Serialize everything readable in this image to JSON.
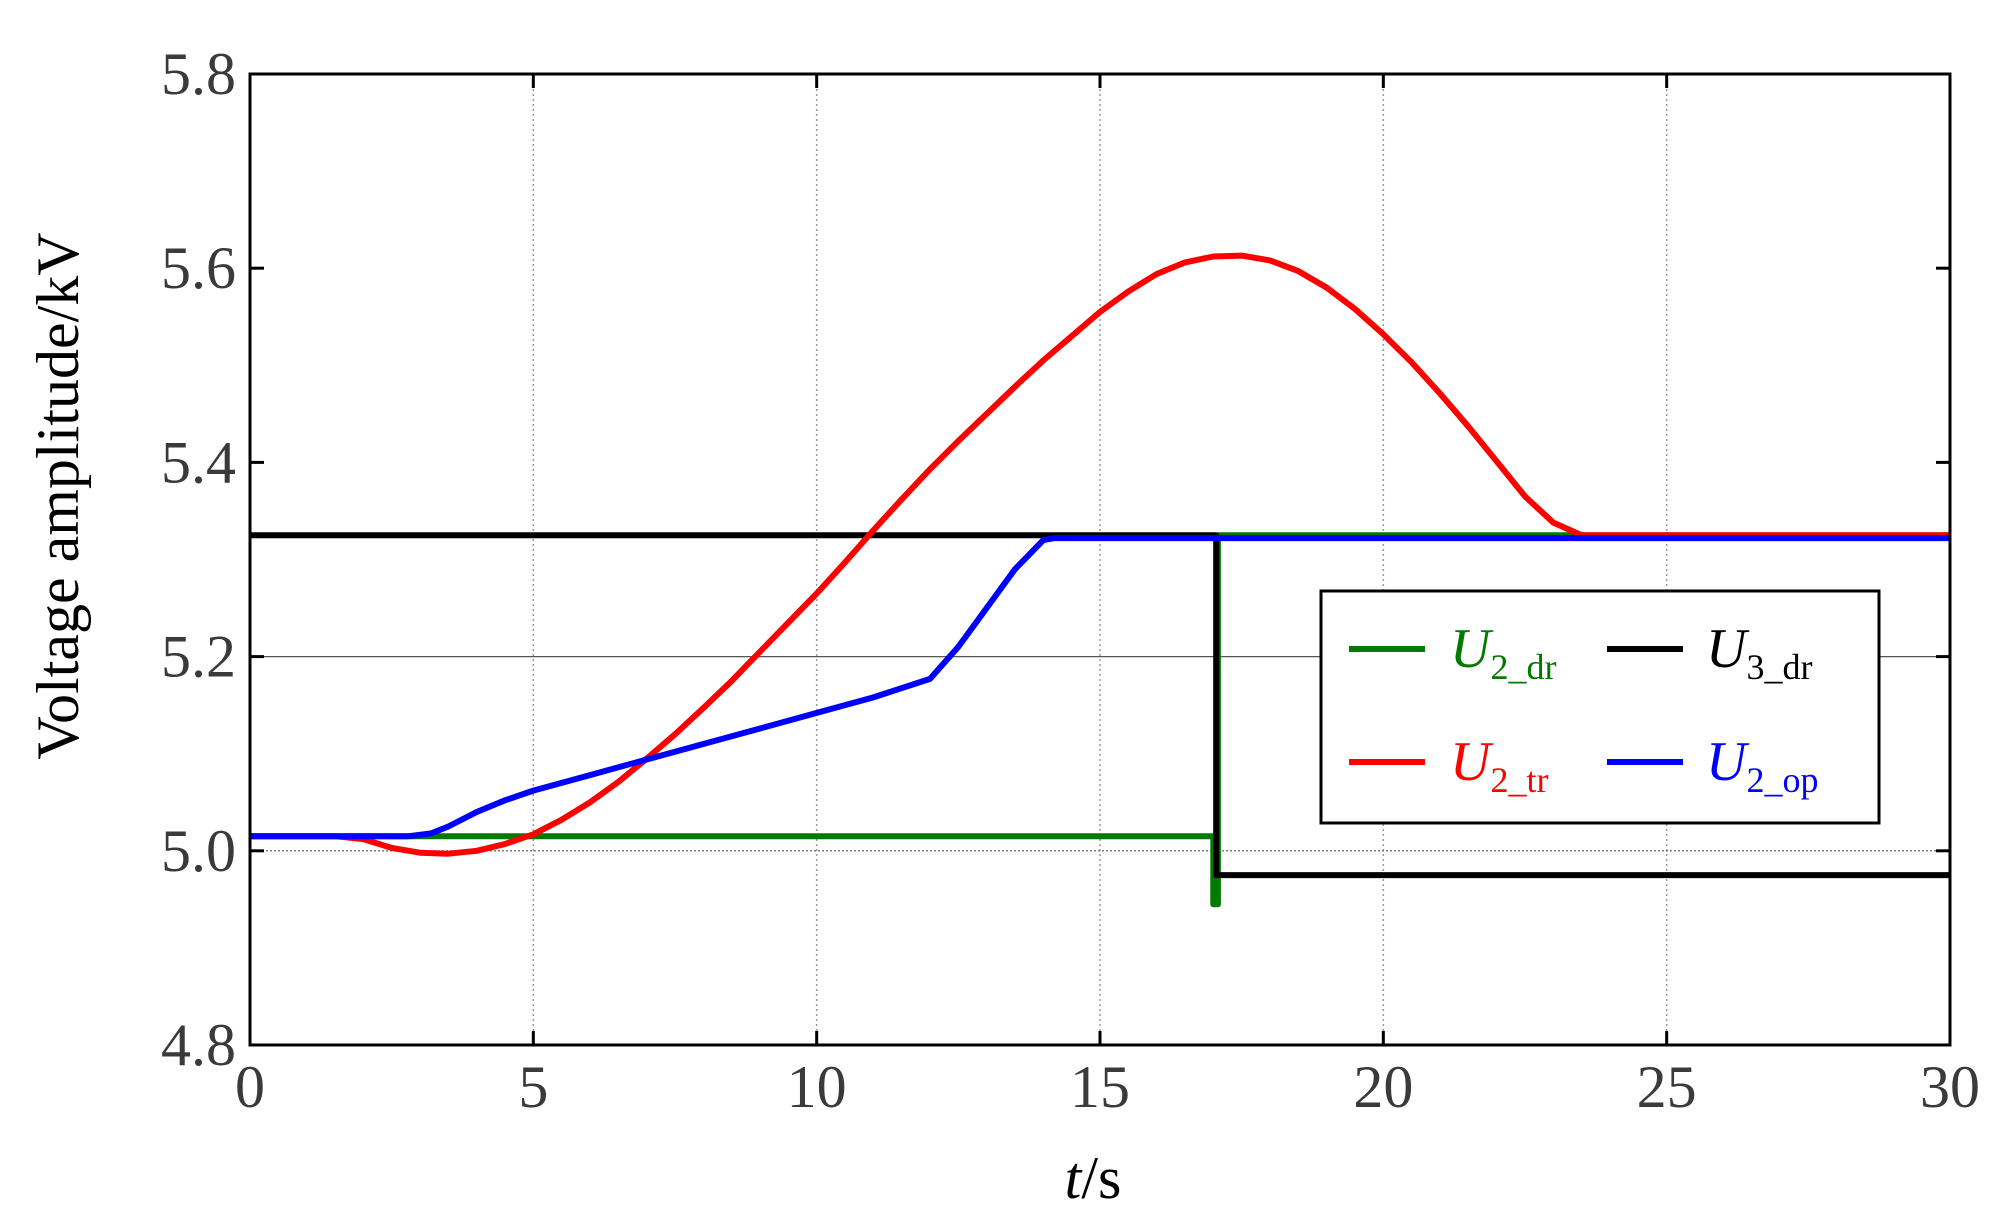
{
  "chart_data": {
    "type": "line",
    "title": "",
    "xlabel": {
      "var": "t",
      "unit": "/s"
    },
    "ylabel": "Voltage amplitude/kV",
    "xlim": [
      0,
      30
    ],
    "ylim": [
      4.8,
      5.8
    ],
    "xticks": [
      0,
      5,
      10,
      15,
      20,
      25,
      30
    ],
    "xtick_labels": [
      "0",
      "5",
      "10",
      "15",
      "20",
      "25",
      "30"
    ],
    "yticks": [
      4.8,
      5.0,
      5.2,
      5.4,
      5.6,
      5.8
    ],
    "ytick_labels": [
      "4.8",
      "5.0",
      "5.2",
      "5.4",
      "5.6",
      "5.8"
    ],
    "grid": "dotted vertical lines at x ticks; thin horizontal reference lines at 5.0 and 5.2",
    "legend_position": "right",
    "series": [
      {
        "key": "u2_dr",
        "label": {
          "main": "U",
          "sub": "2_dr"
        },
        "color": "#007a00",
        "x": [
          0,
          17,
          17,
          17.08,
          17.08,
          30
        ],
        "y": [
          5.015,
          5.015,
          4.945,
          4.945,
          5.325,
          5.325
        ]
      },
      {
        "key": "u3_dr",
        "label": {
          "main": "U",
          "sub": "3_dr"
        },
        "color": "#000000",
        "x": [
          0,
          17,
          17.05,
          17.05,
          30
        ],
        "y": [
          5.325,
          5.325,
          5.325,
          4.975,
          4.975
        ]
      },
      {
        "key": "u2_tr",
        "label": {
          "main": "U",
          "sub": "2_tr"
        },
        "color": "#ff0000",
        "x": [
          0,
          1.5,
          2,
          2.5,
          3,
          3.5,
          4,
          4.5,
          5,
          5.5,
          6,
          6.5,
          7,
          7.5,
          8,
          8.5,
          9,
          9.5,
          10,
          10.5,
          11,
          11.5,
          12,
          12.5,
          13,
          13.5,
          14,
          14.5,
          15,
          15.5,
          16,
          16.5,
          17,
          17.5,
          18,
          18.5,
          19,
          19.5,
          20,
          20.5,
          21,
          21.5,
          22,
          22.5,
          23,
          23.5,
          24,
          30
        ],
        "y": [
          5.015,
          5.015,
          5.012,
          5.003,
          4.998,
          4.997,
          5.0,
          5.007,
          5.017,
          5.032,
          5.05,
          5.071,
          5.095,
          5.12,
          5.147,
          5.175,
          5.205,
          5.235,
          5.265,
          5.297,
          5.33,
          5.362,
          5.393,
          5.422,
          5.45,
          5.478,
          5.505,
          5.53,
          5.555,
          5.576,
          5.594,
          5.606,
          5.612,
          5.613,
          5.608,
          5.597,
          5.58,
          5.558,
          5.532,
          5.503,
          5.471,
          5.437,
          5.401,
          5.365,
          5.338,
          5.325,
          5.325,
          5.325
        ]
      },
      {
        "key": "u2_op",
        "label": {
          "main": "U",
          "sub": "2_op"
        },
        "color": "#0000ff",
        "x": [
          0,
          2.8,
          3.2,
          3.5,
          4,
          4.5,
          5,
          6,
          7,
          8,
          9,
          10,
          11,
          12,
          12.5,
          13,
          13.5,
          14,
          14.2,
          30
        ],
        "y": [
          5.015,
          5.015,
          5.018,
          5.025,
          5.04,
          5.052,
          5.062,
          5.078,
          5.094,
          5.11,
          5.126,
          5.142,
          5.158,
          5.177,
          5.21,
          5.25,
          5.29,
          5.32,
          5.322,
          5.322
        ]
      }
    ]
  }
}
